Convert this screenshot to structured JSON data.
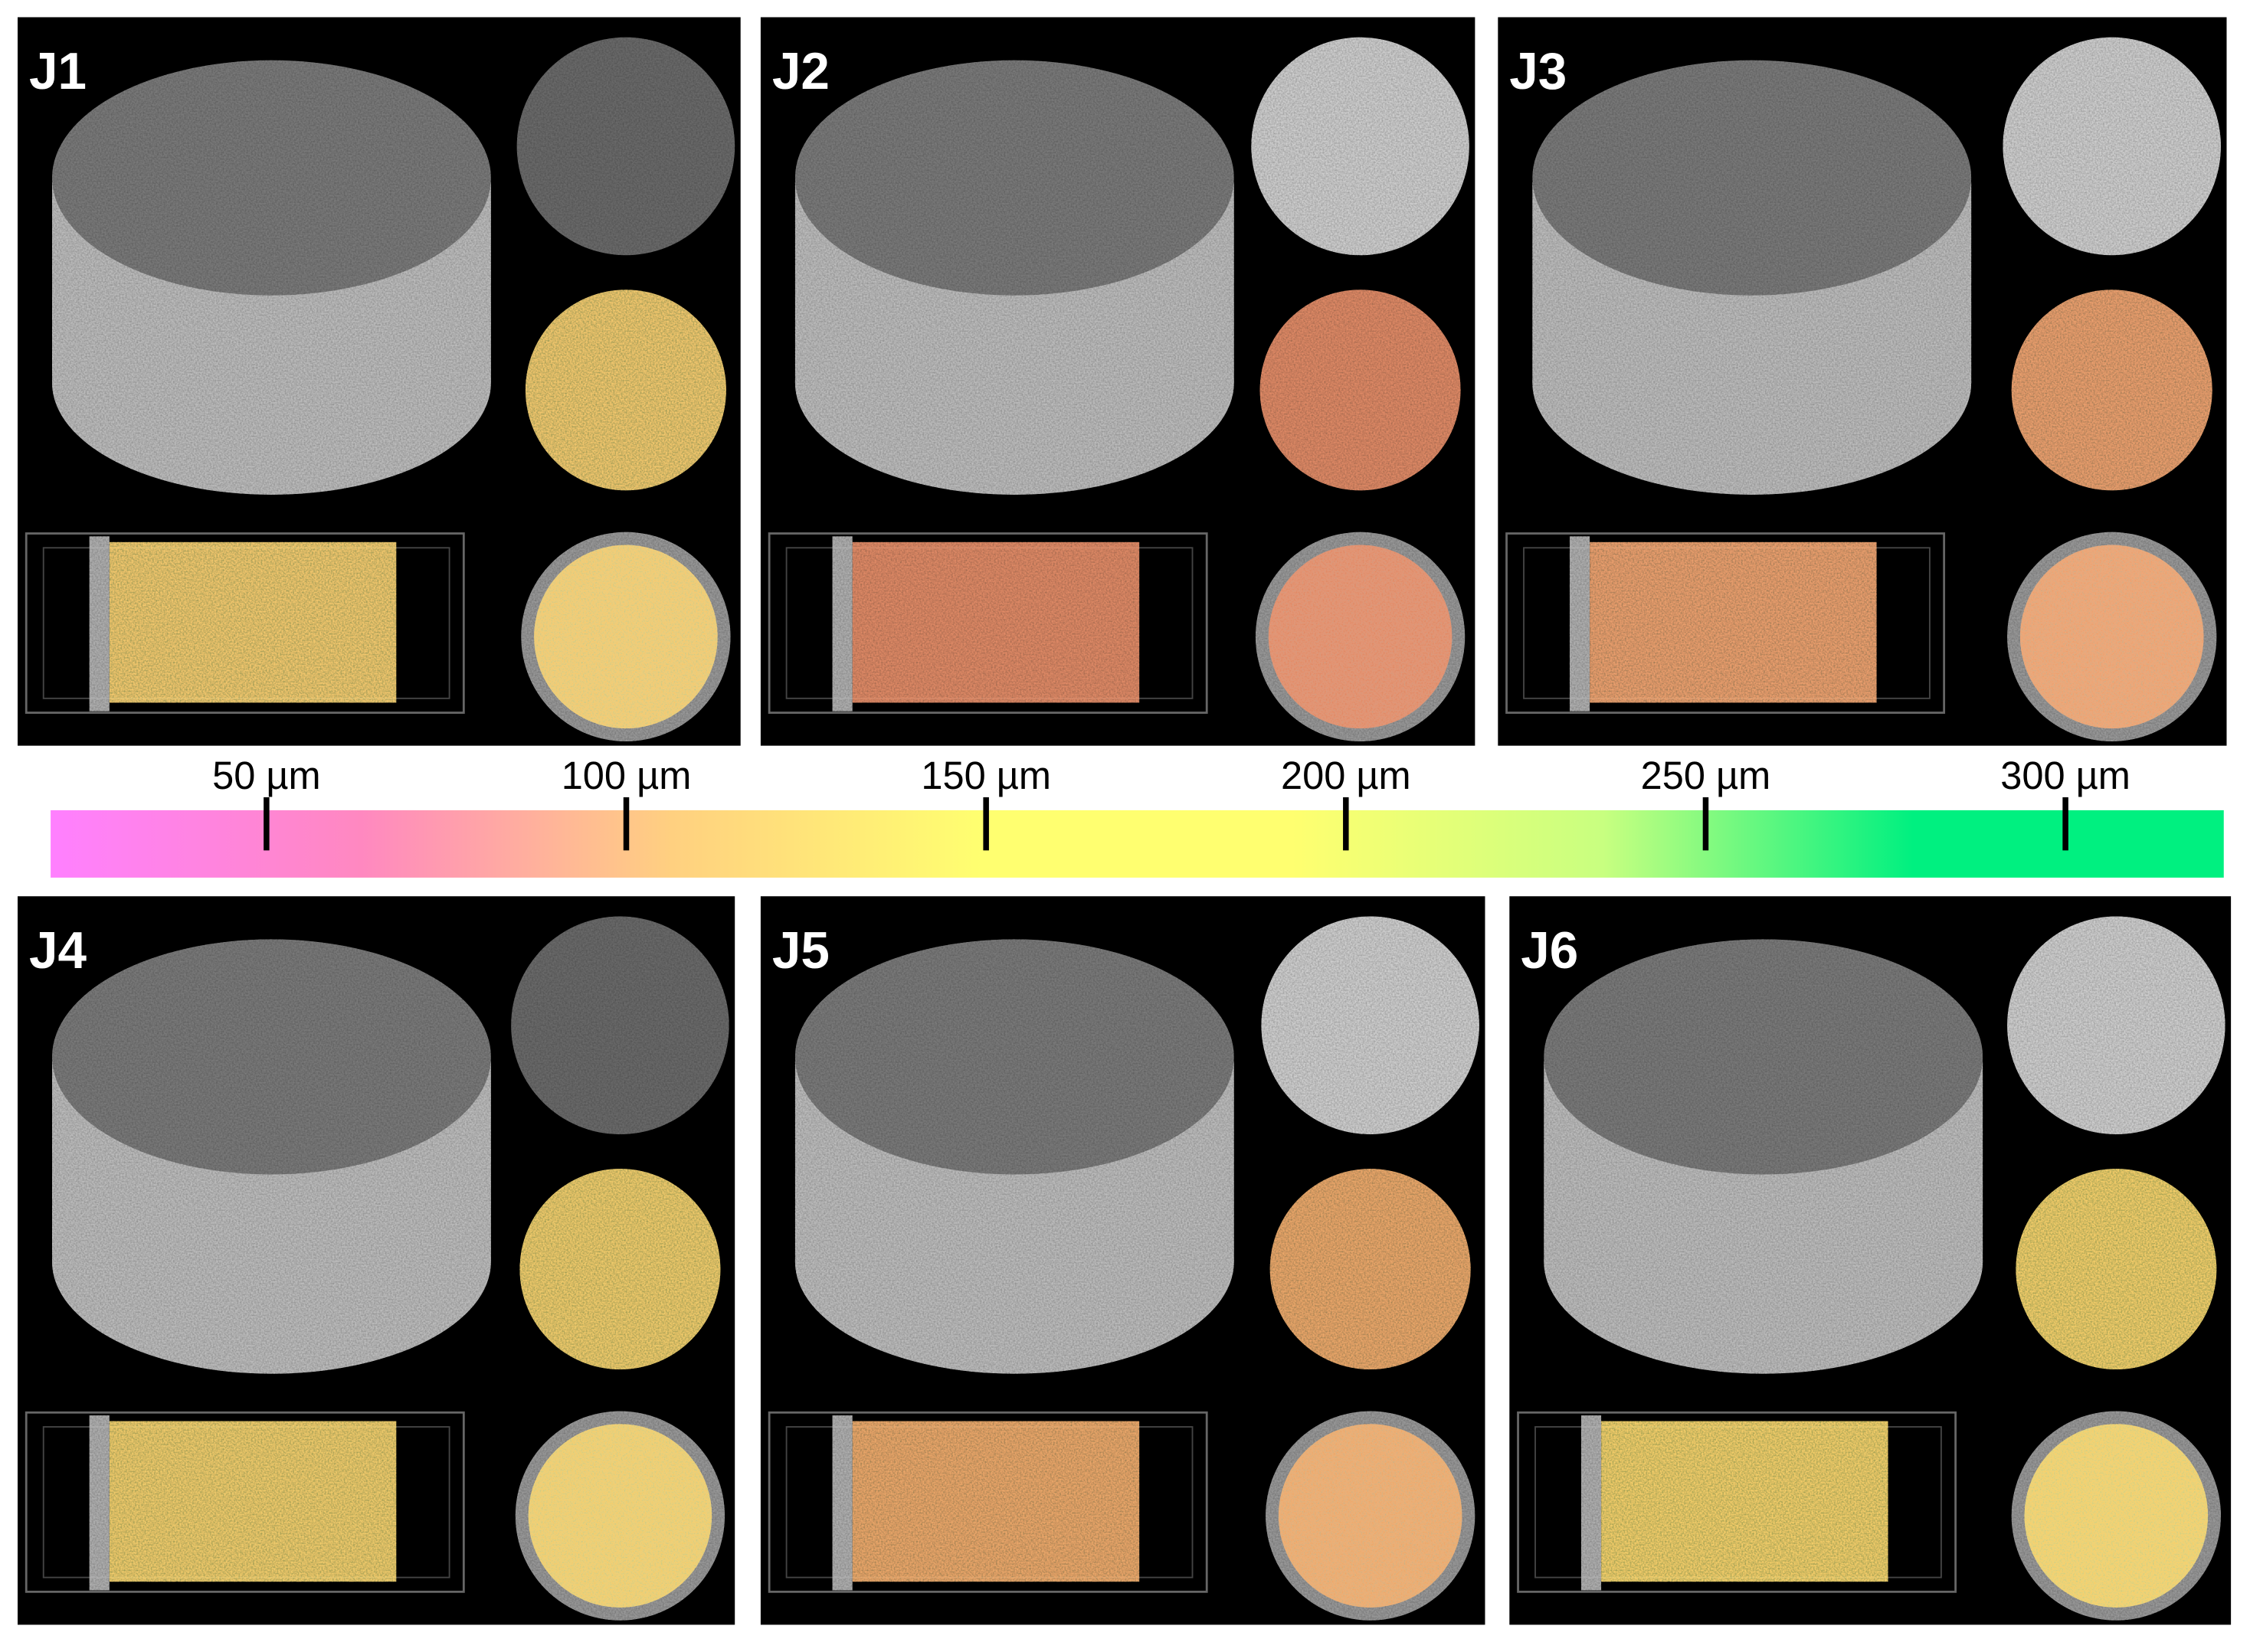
{
  "panels": [
    {
      "label": "J1",
      "color": "#f3c96e"
    },
    {
      "label": "J2",
      "color": "#e08a66"
    },
    {
      "label": "J3",
      "color": "#eba06e"
    },
    {
      "label": "J4",
      "color": "#f0cc6c"
    },
    {
      "label": "J5",
      "color": "#eba86a"
    },
    {
      "label": "J6",
      "color": "#f4cf6a"
    }
  ],
  "colorbar": {
    "xlim": [
      20,
      322
    ],
    "xticks": [
      {
        "value": 50,
        "label": "50 µm"
      },
      {
        "value": 100,
        "label": "100 µm"
      },
      {
        "value": 150,
        "label": "150 µm"
      },
      {
        "value": 200,
        "label": "200 µm"
      },
      {
        "value": 250,
        "label": "250 µm"
      },
      {
        "value": 300,
        "label": "300 µm"
      }
    ],
    "colors": [
      "#ff80ff",
      "#ff88c0",
      "#ffd080",
      "#ffff70",
      "#ffff70",
      "#c8ff80",
      "#00f080",
      "#00f080"
    ]
  }
}
